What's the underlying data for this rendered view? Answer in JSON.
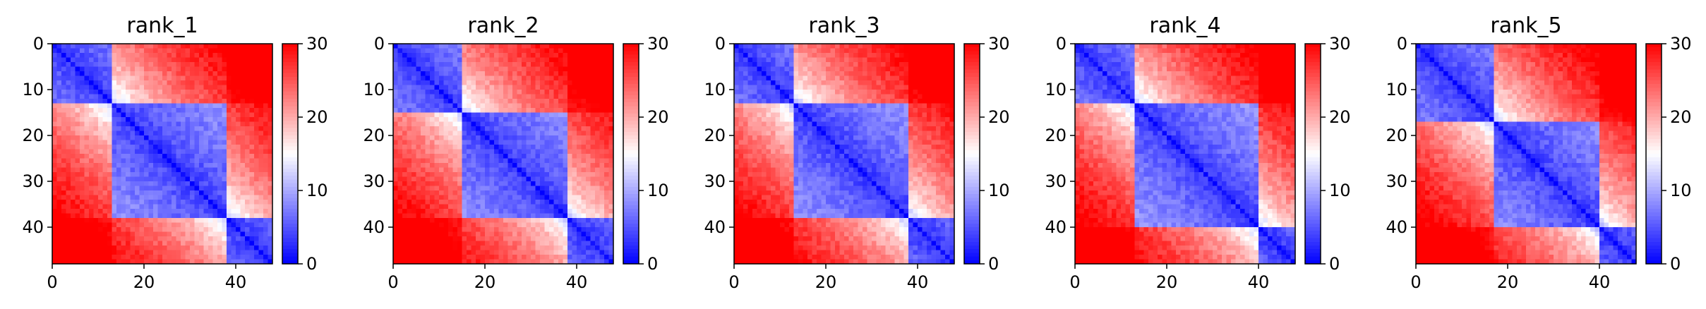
{
  "figure": {
    "colormap": {
      "name": "bwr",
      "low": "#0000ff",
      "mid": "#ffffff",
      "high": "#ff0000"
    }
  },
  "chart_data": [
    {
      "type": "heatmap",
      "title": "rank_1",
      "matrix_size": 48,
      "xticks": [
        0,
        20,
        40
      ],
      "yticks": [
        0,
        10,
        20,
        30,
        40
      ],
      "xlim": [
        0,
        48
      ],
      "ylim": [
        48,
        0
      ],
      "colorbar": {
        "min": 0,
        "max": 30,
        "ticks": [
          0,
          10,
          20,
          30
        ]
      },
      "domains": [
        [
          0,
          13
        ],
        [
          13,
          38
        ],
        [
          38,
          48
        ]
      ]
    },
    {
      "type": "heatmap",
      "title": "rank_2",
      "matrix_size": 48,
      "xticks": [
        0,
        20,
        40
      ],
      "yticks": [
        0,
        10,
        20,
        30,
        40
      ],
      "xlim": [
        0,
        48
      ],
      "ylim": [
        48,
        0
      ],
      "colorbar": {
        "min": 0,
        "max": 30,
        "ticks": [
          0,
          10,
          20,
          30
        ]
      },
      "domains": [
        [
          0,
          15
        ],
        [
          15,
          38
        ],
        [
          38,
          48
        ]
      ]
    },
    {
      "type": "heatmap",
      "title": "rank_3",
      "matrix_size": 48,
      "xticks": [
        0,
        20,
        40
      ],
      "yticks": [
        0,
        10,
        20,
        30,
        40
      ],
      "xlim": [
        0,
        48
      ],
      "ylim": [
        48,
        0
      ],
      "colorbar": {
        "min": 0,
        "max": 30,
        "ticks": [
          0,
          10,
          20,
          30
        ]
      },
      "domains": [
        [
          0,
          13
        ],
        [
          13,
          38
        ],
        [
          38,
          48
        ]
      ]
    },
    {
      "type": "heatmap",
      "title": "rank_4",
      "matrix_size": 48,
      "xticks": [
        0,
        20,
        40
      ],
      "yticks": [
        0,
        10,
        20,
        30,
        40
      ],
      "xlim": [
        0,
        48
      ],
      "ylim": [
        48,
        0
      ],
      "colorbar": {
        "min": 0,
        "max": 30,
        "ticks": [
          0,
          10,
          20,
          30
        ]
      },
      "domains": [
        [
          0,
          13
        ],
        [
          13,
          40
        ],
        [
          40,
          48
        ]
      ]
    },
    {
      "type": "heatmap",
      "title": "rank_5",
      "matrix_size": 48,
      "xticks": [
        0,
        20,
        40
      ],
      "yticks": [
        0,
        10,
        20,
        30,
        40
      ],
      "xlim": [
        0,
        48
      ],
      "ylim": [
        48,
        0
      ],
      "colorbar": {
        "min": 0,
        "max": 30,
        "ticks": [
          0,
          10,
          20,
          30
        ]
      },
      "domains": [
        [
          0,
          17
        ],
        [
          17,
          40
        ],
        [
          40,
          48
        ]
      ]
    }
  ]
}
